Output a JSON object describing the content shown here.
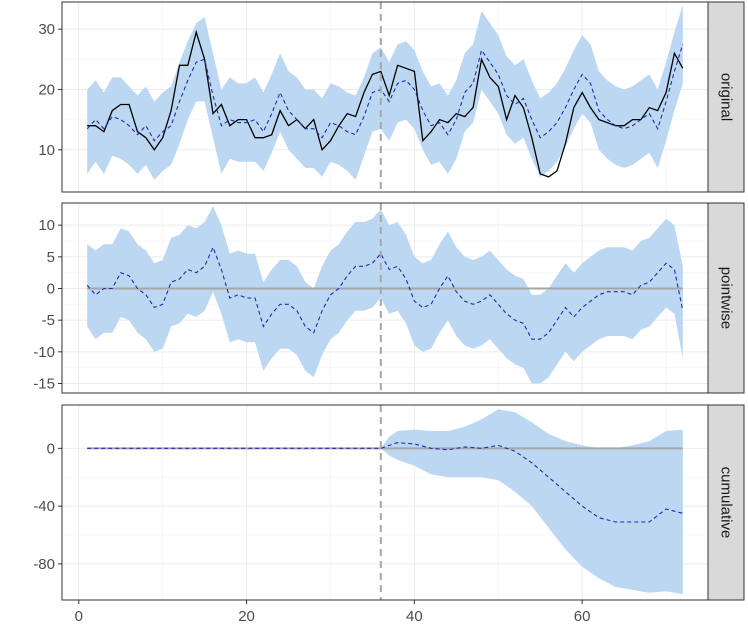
{
  "chart_data": {
    "type": "line",
    "title": "",
    "xlabel": "",
    "ylabel": "",
    "xlim": [
      -2,
      75
    ],
    "xticks": [
      0,
      20,
      40,
      60
    ],
    "intervention_x": 36,
    "colors": {
      "band": "#bcd7f2",
      "observed": "#000000",
      "predicted": "#1f2bb0",
      "zero_line": "#a6a6a6",
      "vline": "#a6a6a6",
      "strip_bg": "#d9d9d9",
      "grid": "#ebebeb"
    },
    "panels": [
      {
        "strip": "original",
        "ylim": [
          3,
          34.5
        ],
        "yticks": [
          10,
          20,
          30
        ],
        "x": [
          1,
          2,
          3,
          4,
          5,
          6,
          7,
          8,
          9,
          10,
          11,
          12,
          13,
          14,
          15,
          16,
          17,
          18,
          19,
          20,
          21,
          22,
          23,
          24,
          25,
          26,
          27,
          28,
          29,
          30,
          31,
          32,
          33,
          34,
          35,
          36,
          37,
          38,
          39,
          40,
          41,
          42,
          43,
          44,
          45,
          46,
          47,
          48,
          49,
          50,
          51,
          52,
          53,
          54,
          55,
          56,
          57,
          58,
          59,
          60,
          61,
          62,
          63,
          64,
          65,
          66,
          67,
          68,
          69,
          70,
          71,
          72
        ],
        "observed": [
          14,
          14,
          13,
          16.5,
          17.5,
          17.5,
          13,
          12,
          10,
          12,
          16.5,
          24,
          24,
          29.5,
          25,
          16,
          17.5,
          14,
          15,
          15,
          12,
          12,
          12.5,
          16.5,
          14,
          15,
          13.5,
          15,
          10,
          11.5,
          14,
          16,
          15.5,
          19.5,
          22.5,
          23,
          19,
          24,
          23.5,
          23,
          11.5,
          13,
          15,
          14.5,
          16,
          15.5,
          17,
          25,
          22,
          20.5,
          15,
          19,
          17,
          12,
          6,
          5.5,
          6.5,
          11,
          17,
          19.5,
          17,
          15,
          14.5,
          14,
          14,
          15,
          15,
          17,
          16.5,
          19.5,
          26,
          23.5
        ],
        "predicted": [
          13.5,
          15,
          13.5,
          15.5,
          15,
          14,
          12.5,
          14,
          11.5,
          13,
          14,
          18,
          21.5,
          24.5,
          25,
          19,
          14,
          15,
          14.5,
          14.5,
          15,
          13,
          16,
          19.5,
          16.5,
          15,
          13.5,
          13.5,
          12,
          14.5,
          14,
          13,
          12.5,
          15.5,
          19.5,
          20,
          18,
          21,
          21.5,
          20,
          16.5,
          14,
          14.5,
          12.5,
          15,
          19.5,
          21,
          26.5,
          24.5,
          22.5,
          19,
          17.5,
          18.5,
          15,
          12,
          13,
          14.5,
          17,
          20,
          22.5,
          21,
          16.5,
          15,
          14,
          13.5,
          14,
          15,
          16,
          13.5,
          18,
          23,
          27.5
        ],
        "upper": [
          20,
          21.5,
          19.5,
          22,
          22,
          20.5,
          19,
          20.5,
          18,
          19.5,
          20.5,
          24.5,
          28,
          31,
          32,
          26,
          20,
          22,
          21,
          21,
          22,
          19.5,
          22.5,
          26,
          23,
          22,
          20,
          20,
          18.5,
          21,
          20.5,
          19.5,
          19,
          22,
          26,
          27,
          24.5,
          27.5,
          28,
          26.5,
          23,
          20.5,
          21,
          19,
          21.5,
          26,
          27.5,
          33,
          31,
          29,
          25.5,
          24,
          25,
          21.5,
          18.5,
          19.5,
          21,
          23.5,
          26.5,
          29,
          27.5,
          23,
          21.5,
          20.5,
          20,
          20.5,
          21.5,
          22.5,
          20,
          24.5,
          29.5,
          34
        ],
        "lower": [
          6,
          8,
          6,
          9,
          8.5,
          7.5,
          6,
          7.5,
          5,
          6.5,
          7.5,
          11,
          15,
          18,
          18,
          12,
          6,
          8.5,
          8,
          8,
          8,
          6.5,
          9.5,
          13,
          10,
          8.5,
          7,
          7,
          5.5,
          8,
          7.5,
          6.5,
          5,
          9,
          13,
          13.5,
          11.5,
          14.5,
          15,
          13.5,
          10,
          7.5,
          8,
          6,
          8.5,
          13,
          14.5,
          20,
          18,
          16,
          12.5,
          11,
          12,
          8.5,
          5.5,
          6.5,
          8,
          10.5,
          13.5,
          16,
          14.5,
          10,
          8.5,
          7.5,
          7,
          7.5,
          8.5,
          9.5,
          7,
          11.5,
          16.5,
          21
        ]
      },
      {
        "strip": "pointwise",
        "ylim": [
          -16.5,
          13.5
        ],
        "yticks": [
          -15,
          -10,
          -5,
          0,
          5,
          10
        ],
        "zero_line": 0,
        "x": [
          1,
          2,
          3,
          4,
          5,
          6,
          7,
          8,
          9,
          10,
          11,
          12,
          13,
          14,
          15,
          16,
          17,
          18,
          19,
          20,
          21,
          22,
          23,
          24,
          25,
          26,
          27,
          28,
          29,
          30,
          31,
          32,
          33,
          34,
          35,
          36,
          37,
          38,
          39,
          40,
          41,
          42,
          43,
          44,
          45,
          46,
          47,
          48,
          49,
          50,
          51,
          52,
          53,
          54,
          55,
          56,
          57,
          58,
          59,
          60,
          61,
          62,
          63,
          64,
          65,
          66,
          67,
          68,
          69,
          70,
          71,
          72
        ],
        "predicted": [
          0.5,
          -1,
          0,
          0,
          2.5,
          2,
          0,
          -1,
          -3,
          -2.5,
          1,
          1.5,
          3,
          2.5,
          3.5,
          6.5,
          3,
          -1.5,
          -1,
          -1.5,
          -1.5,
          -6,
          -4,
          -2.5,
          -2.5,
          -3.5,
          -6,
          -7,
          -3.5,
          -1,
          0,
          2,
          3.5,
          3.5,
          4,
          5.5,
          3,
          3.5,
          1.5,
          -2,
          -3,
          -2.5,
          0,
          2,
          -0.5,
          -2,
          -2.5,
          -2,
          -1,
          -2.5,
          -4,
          -5,
          -5.5,
          -8,
          -8,
          -7,
          -5,
          -3,
          -4.5,
          -3,
          -2,
          -1,
          -0.5,
          -0.5,
          -0.5,
          -1,
          0.5,
          1,
          2.5,
          4,
          3,
          -3.5
        ],
        "upper": [
          7,
          6,
          7,
          7,
          9.5,
          9,
          7,
          6,
          4,
          4.5,
          8,
          8.5,
          10,
          9.5,
          10.5,
          13,
          10,
          5.5,
          6,
          5.5,
          5.5,
          1,
          3,
          4.5,
          4.5,
          3.5,
          1,
          0,
          3.5,
          6,
          7,
          9,
          10.5,
          10.5,
          11,
          12.5,
          10,
          10.5,
          8.5,
          5,
          4,
          4.5,
          7,
          9,
          6.5,
          5,
          4.5,
          5,
          6,
          4.5,
          3,
          2,
          1.5,
          -1,
          -1,
          0,
          2,
          4,
          2.5,
          4,
          5,
          6,
          6.5,
          6.5,
          6.5,
          6,
          7.5,
          8,
          9.5,
          11,
          10,
          3.5
        ],
        "lower": [
          -6,
          -8,
          -7,
          -7,
          -4.5,
          -5,
          -7,
          -8,
          -10,
          -9.5,
          -6,
          -5.5,
          -4,
          -4.5,
          -3.5,
          -0.5,
          -4,
          -8.5,
          -8,
          -8.5,
          -8.5,
          -13,
          -11,
          -9.5,
          -9.5,
          -10.5,
          -13,
          -14,
          -10.5,
          -8,
          -7,
          -5,
          -3.5,
          -3.5,
          -3,
          -1.5,
          -4,
          -3.5,
          -5.5,
          -9,
          -10,
          -9.5,
          -7,
          -5,
          -7.5,
          -9,
          -9.5,
          -9,
          -8,
          -9.5,
          -11,
          -12,
          -12.5,
          -15,
          -15,
          -14,
          -12,
          -10,
          -11.5,
          -10,
          -9,
          -8,
          -7.5,
          -7.5,
          -7.5,
          -8,
          -6.5,
          -6,
          -4.5,
          -3,
          -4,
          -11
        ]
      },
      {
        "strip": "cumulative",
        "ylim": [
          -105,
          30
        ],
        "yticks": [
          -80,
          -40,
          0
        ],
        "zero_line": 0,
        "x": [
          1,
          36,
          37,
          38,
          40,
          42,
          44,
          46,
          48,
          50,
          52,
          54,
          56,
          58,
          60,
          62,
          64,
          66,
          68,
          70,
          72
        ],
        "predicted": [
          0,
          0,
          2,
          4,
          3,
          0,
          -1,
          1,
          0,
          2,
          -2,
          -10,
          -20,
          -30,
          -40,
          -48,
          -51,
          -51,
          -51,
          -42,
          -45
        ],
        "upper": [
          0,
          0,
          8,
          12,
          13,
          12,
          12,
          15,
          20,
          27,
          25,
          18,
          10,
          5,
          2,
          0,
          0,
          2,
          5,
          12,
          13
        ],
        "lower": [
          0,
          0,
          -5,
          -8,
          -12,
          -18,
          -20,
          -20,
          -20,
          -22,
          -30,
          -40,
          -55,
          -70,
          -82,
          -90,
          -96,
          -98,
          -100,
          -99,
          -101
        ]
      }
    ]
  }
}
